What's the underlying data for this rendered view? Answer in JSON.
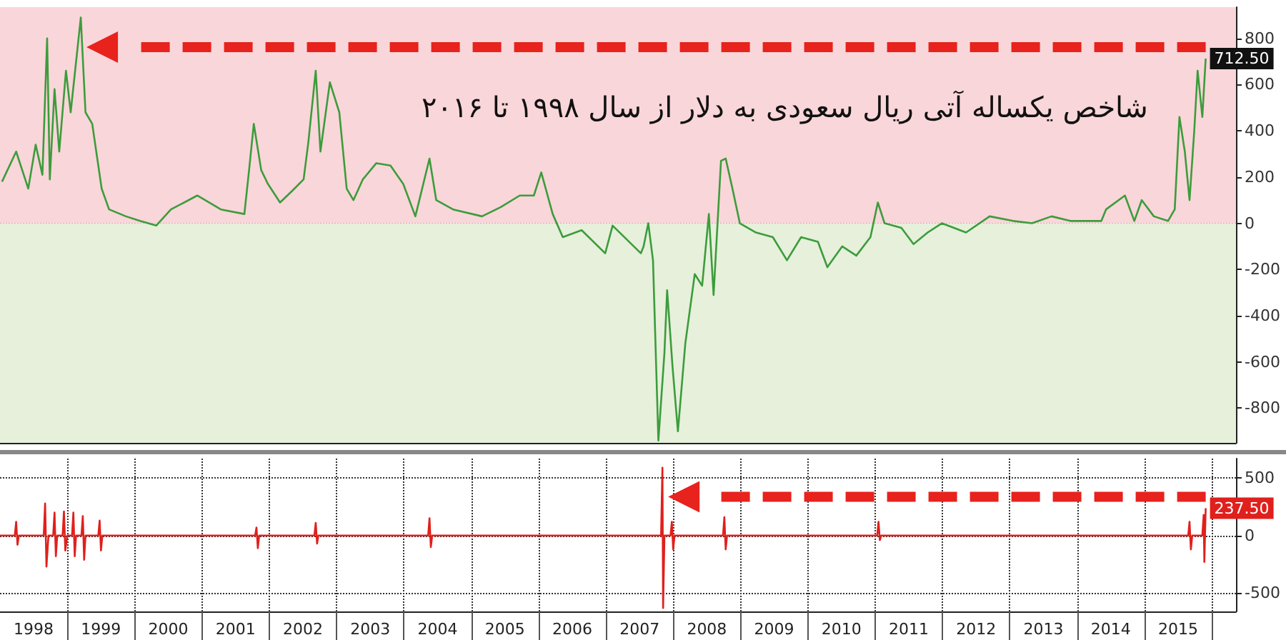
{
  "chart_data": [
    {
      "type": "line",
      "title": "شاخص یکساله آتی ریال سعودی به دلار از سال ۱۹۹۸ تا ۲۰۱۶",
      "x": [
        1998.03,
        1998.24,
        1998.42,
        1998.53,
        1998.63,
        1998.7,
        1998.74,
        1998.81,
        1998.88,
        1998.98,
        1999.05,
        1999.2,
        1999.27,
        1999.37,
        1999.44,
        1999.51,
        1999.62,
        1999.87,
        2000.08,
        2000.32,
        2000.54,
        2000.93,
        2001.28,
        2001.63,
        2001.7,
        2001.77,
        2001.88,
        2001.98,
        2002.16,
        2002.34,
        2002.51,
        2002.58,
        2002.69,
        2002.76,
        2002.9,
        2003.04,
        2003.15,
        2003.25,
        2003.39,
        2003.59,
        2003.8,
        2003.99,
        2004.17,
        2004.38,
        2004.48,
        2004.73,
        2005.16,
        2005.44,
        2005.72,
        2005.93,
        2006.04,
        2006.21,
        2006.36,
        2006.64,
        2006.99,
        2007.1,
        2007.52,
        2007.56,
        2007.63,
        2007.7,
        2007.78,
        2007.87,
        2007.91,
        2007.99,
        2008.07,
        2008.18,
        2008.32,
        2008.43,
        2008.53,
        2008.6,
        2008.71,
        2008.78,
        2008.88,
        2008.99,
        2009.23,
        2009.48,
        2009.69,
        2009.9,
        2010.15,
        2010.29,
        2010.51,
        2010.72,
        2010.93,
        2011.04,
        2011.14,
        2011.39,
        2011.57,
        2011.78,
        2011.99,
        2012.35,
        2012.7,
        2013.05,
        2013.33,
        2013.62,
        2013.9,
        2014.36,
        2014.43,
        2014.71,
        2014.85,
        2014.96,
        2015.14,
        2015.35,
        2015.45,
        2015.52,
        2015.6,
        2015.67,
        2015.74,
        2015.79,
        2015.86,
        2015.91
      ],
      "series": [
        {
          "color": "#3c9c3c",
          "values": [
            180,
            310,
            150,
            340,
            210,
            800,
            190,
            580,
            310,
            660,
            480,
            890,
            480,
            430,
            290,
            150,
            60,
            30,
            10,
            -10,
            60,
            120,
            60,
            40,
            230,
            430,
            230,
            170,
            90,
            140,
            190,
            350,
            660,
            310,
            610,
            480,
            150,
            100,
            190,
            260,
            250,
            170,
            30,
            280,
            100,
            60,
            30,
            70,
            120,
            120,
            220,
            40,
            -60,
            -30,
            -130,
            -10,
            -130,
            -100,
            0,
            -160,
            -940,
            -560,
            -290,
            -620,
            -900,
            -520,
            -220,
            -270,
            40,
            -310,
            270,
            280,
            150,
            0,
            -40,
            -60,
            -160,
            -60,
            -80,
            -190,
            -100,
            -140,
            -60,
            90,
            0,
            -20,
            -90,
            -40,
            0,
            -40,
            30,
            10,
            0,
            30,
            10,
            10,
            60,
            120,
            10,
            100,
            30,
            10,
            60,
            460,
            310,
            100,
            400,
            660,
            460,
            712.5
          ],
          "value_labels": [
            null,
            null,
            null,
            null,
            null,
            null,
            null,
            null,
            null,
            null,
            null,
            null,
            null,
            null,
            null,
            null,
            null,
            null,
            null,
            null,
            null,
            null,
            null,
            null,
            null,
            null,
            null,
            null,
            null,
            null,
            null,
            null,
            null,
            null,
            null,
            null,
            null,
            null,
            null,
            null,
            null,
            null,
            null,
            null,
            null,
            null,
            null,
            null,
            null,
            null,
            null,
            null,
            null,
            null,
            null,
            null,
            null,
            null,
            null,
            null,
            null,
            null,
            null,
            null,
            null,
            null,
            null,
            null,
            null,
            null,
            null,
            null,
            null,
            null,
            null,
            null,
            null,
            null,
            null,
            null,
            null,
            null,
            null,
            null,
            null,
            null,
            null,
            null,
            null,
            null,
            null,
            null,
            null,
            null,
            null,
            null,
            null,
            null,
            null,
            null,
            null,
            null,
            null,
            null,
            null,
            null,
            null,
            null,
            null,
            "712.50"
          ]
        }
      ],
      "xlim": [
        1998,
        2016.36
      ],
      "xticks": [
        {
          "value": 1999,
          "label": null
        },
        {
          "value": 2000,
          "label": null
        },
        {
          "value": 2001,
          "label": null
        },
        {
          "value": 2002,
          "label": null
        },
        {
          "value": 2003,
          "label": null
        },
        {
          "value": 2004,
          "label": null
        },
        {
          "value": 2005,
          "label": null
        },
        {
          "value": 2006,
          "label": null
        },
        {
          "value": 2007,
          "label": null
        },
        {
          "value": 2008,
          "label": null
        },
        {
          "value": 2009,
          "label": null
        },
        {
          "value": 2010,
          "label": null
        },
        {
          "value": 2011,
          "label": null
        },
        {
          "value": 2012,
          "label": null
        },
        {
          "value": 2013,
          "label": null
        },
        {
          "value": 2014,
          "label": null
        },
        {
          "value": 2015,
          "label": null
        },
        {
          "value": 2016,
          "label": null
        }
      ],
      "ylim": [
        -950,
        935
      ],
      "yticks": [
        -800,
        -600,
        -400,
        -200,
        0,
        200,
        400,
        600,
        800
      ],
      "tick_labels": "y",
      "grid": true,
      "bands": [
        {
          "axis": "y",
          "from": 0,
          "to": 935,
          "color": "#f9d6d9"
        },
        {
          "axis": "y",
          "from": -950,
          "to": 0,
          "color": "#e6f0db"
        }
      ]
    },
    {
      "type": "line",
      "x": [
        1998.0,
        1998.22,
        1998.24,
        1998.26,
        1998.28,
        1998.65,
        1998.67,
        1998.69,
        1998.72,
        1998.79,
        1998.81,
        1998.83,
        1998.85,
        1998.93,
        1998.95,
        1998.97,
        1999.0,
        1999.07,
        1999.09,
        1999.11,
        1999.13,
        1999.21,
        1999.23,
        1999.25,
        1999.27,
        1999.46,
        1999.48,
        1999.5,
        1999.52,
        2001.79,
        2001.81,
        2001.83,
        2001.85,
        2002.67,
        2002.69,
        2002.71,
        2002.73,
        2004.36,
        2004.38,
        2004.4,
        2004.42,
        2007.82,
        2007.84,
        2007.85,
        2007.87,
        2007.96,
        2007.98,
        2008.0,
        2008.02,
        2008.74,
        2008.76,
        2008.78,
        2008.8,
        2011.03,
        2011.05,
        2011.07,
        2011.09,
        2015.65,
        2015.67,
        2015.69,
        2015.71,
        2015.86,
        2015.88,
        2015.89,
        2015.91
      ],
      "series": [
        {
          "color": "#e0201c",
          "values": [
            0,
            0,
            120,
            -80,
            0,
            0,
            280,
            -270,
            0,
            0,
            200,
            -180,
            0,
            0,
            210,
            -130,
            0,
            0,
            200,
            -180,
            0,
            0,
            170,
            -210,
            0,
            0,
            130,
            -130,
            0,
            0,
            70,
            -110,
            0,
            0,
            110,
            -70,
            0,
            0,
            150,
            -100,
            0,
            0,
            590,
            -630,
            0,
            0,
            120,
            -120,
            0,
            0,
            160,
            -120,
            0,
            0,
            120,
            -40,
            0,
            0,
            120,
            -120,
            0,
            0,
            180,
            -230,
            237.5
          ],
          "value_labels": [
            null,
            null,
            null,
            null,
            null,
            null,
            null,
            null,
            null,
            null,
            null,
            null,
            null,
            null,
            null,
            null,
            null,
            null,
            null,
            null,
            null,
            null,
            null,
            null,
            null,
            null,
            null,
            null,
            null,
            null,
            null,
            null,
            null,
            null,
            null,
            null,
            null,
            null,
            null,
            null,
            null,
            null,
            null,
            null,
            null,
            null,
            null,
            null,
            null,
            null,
            null,
            null,
            null,
            null,
            null,
            null,
            null,
            null,
            null,
            null,
            null,
            null,
            null,
            null,
            "237.50"
          ]
        }
      ],
      "xlim": [
        1998,
        2016.36
      ],
      "xticks": [
        {
          "value": 1998.5,
          "label": "1998"
        },
        {
          "value": 1999,
          "label": null
        },
        {
          "value": 1999.5,
          "label": "1999"
        },
        {
          "value": 2000,
          "label": null
        },
        {
          "value": 2000.5,
          "label": "2000"
        },
        {
          "value": 2001,
          "label": null
        },
        {
          "value": 2001.5,
          "label": "2001"
        },
        {
          "value": 2002,
          "label": null
        },
        {
          "value": 2002.5,
          "label": "2002"
        },
        {
          "value": 2003,
          "label": null
        },
        {
          "value": 2003.5,
          "label": "2003"
        },
        {
          "value": 2004,
          "label": null
        },
        {
          "value": 2004.5,
          "label": "2004"
        },
        {
          "value": 2005,
          "label": null
        },
        {
          "value": 2005.5,
          "label": "2005"
        },
        {
          "value": 2006,
          "label": null
        },
        {
          "value": 2006.5,
          "label": "2006"
        },
        {
          "value": 2007,
          "label": null
        },
        {
          "value": 2007.5,
          "label": "2007"
        },
        {
          "value": 2008,
          "label": null
        },
        {
          "value": 2008.5,
          "label": "2008"
        },
        {
          "value": 2009,
          "label": null
        },
        {
          "value": 2009.5,
          "label": "2009"
        },
        {
          "value": 2010,
          "label": null
        },
        {
          "value": 2010.5,
          "label": "2010"
        },
        {
          "value": 2011,
          "label": null
        },
        {
          "value": 2011.5,
          "label": "2011"
        },
        {
          "value": 2012,
          "label": null
        },
        {
          "value": 2012.5,
          "label": "2012"
        },
        {
          "value": 2013,
          "label": null
        },
        {
          "value": 2013.5,
          "label": "2013"
        },
        {
          "value": 2014,
          "label": null
        },
        {
          "value": 2014.5,
          "label": "2014"
        },
        {
          "value": 2015,
          "label": null
        },
        {
          "value": 2015.5,
          "label": "2015"
        },
        {
          "value": 2016,
          "label": null
        }
      ],
      "ylim": [
        -660,
        670
      ],
      "yticks": [
        -500,
        0,
        500
      ],
      "grid": true
    }
  ]
}
